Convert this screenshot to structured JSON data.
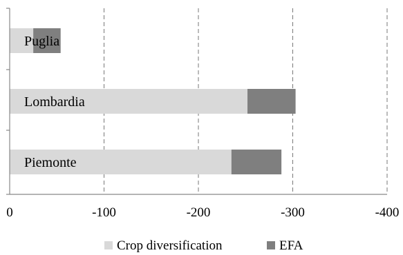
{
  "chart_data": {
    "type": "bar",
    "orientation": "horizontal",
    "stacked": true,
    "categories": [
      "Puglia",
      "Lombardia",
      "Piemonte"
    ],
    "series": [
      {
        "name": "Crop diversification",
        "values": [
          -25,
          -252,
          -235
        ],
        "color": "#d9d9d9"
      },
      {
        "name": "EFA",
        "values": [
          -29,
          -51,
          -53
        ],
        "color": "#7f7f7f"
      }
    ],
    "xlim": [
      0,
      -400
    ],
    "x_ticks": [
      "0",
      "-100",
      "-200",
      "-300",
      "-400"
    ],
    "x_tick_values": [
      0,
      -100,
      -200,
      -300,
      -400
    ],
    "grid": "vertical dashed",
    "legend_position": "bottom",
    "category_label_position": "inside-left"
  }
}
